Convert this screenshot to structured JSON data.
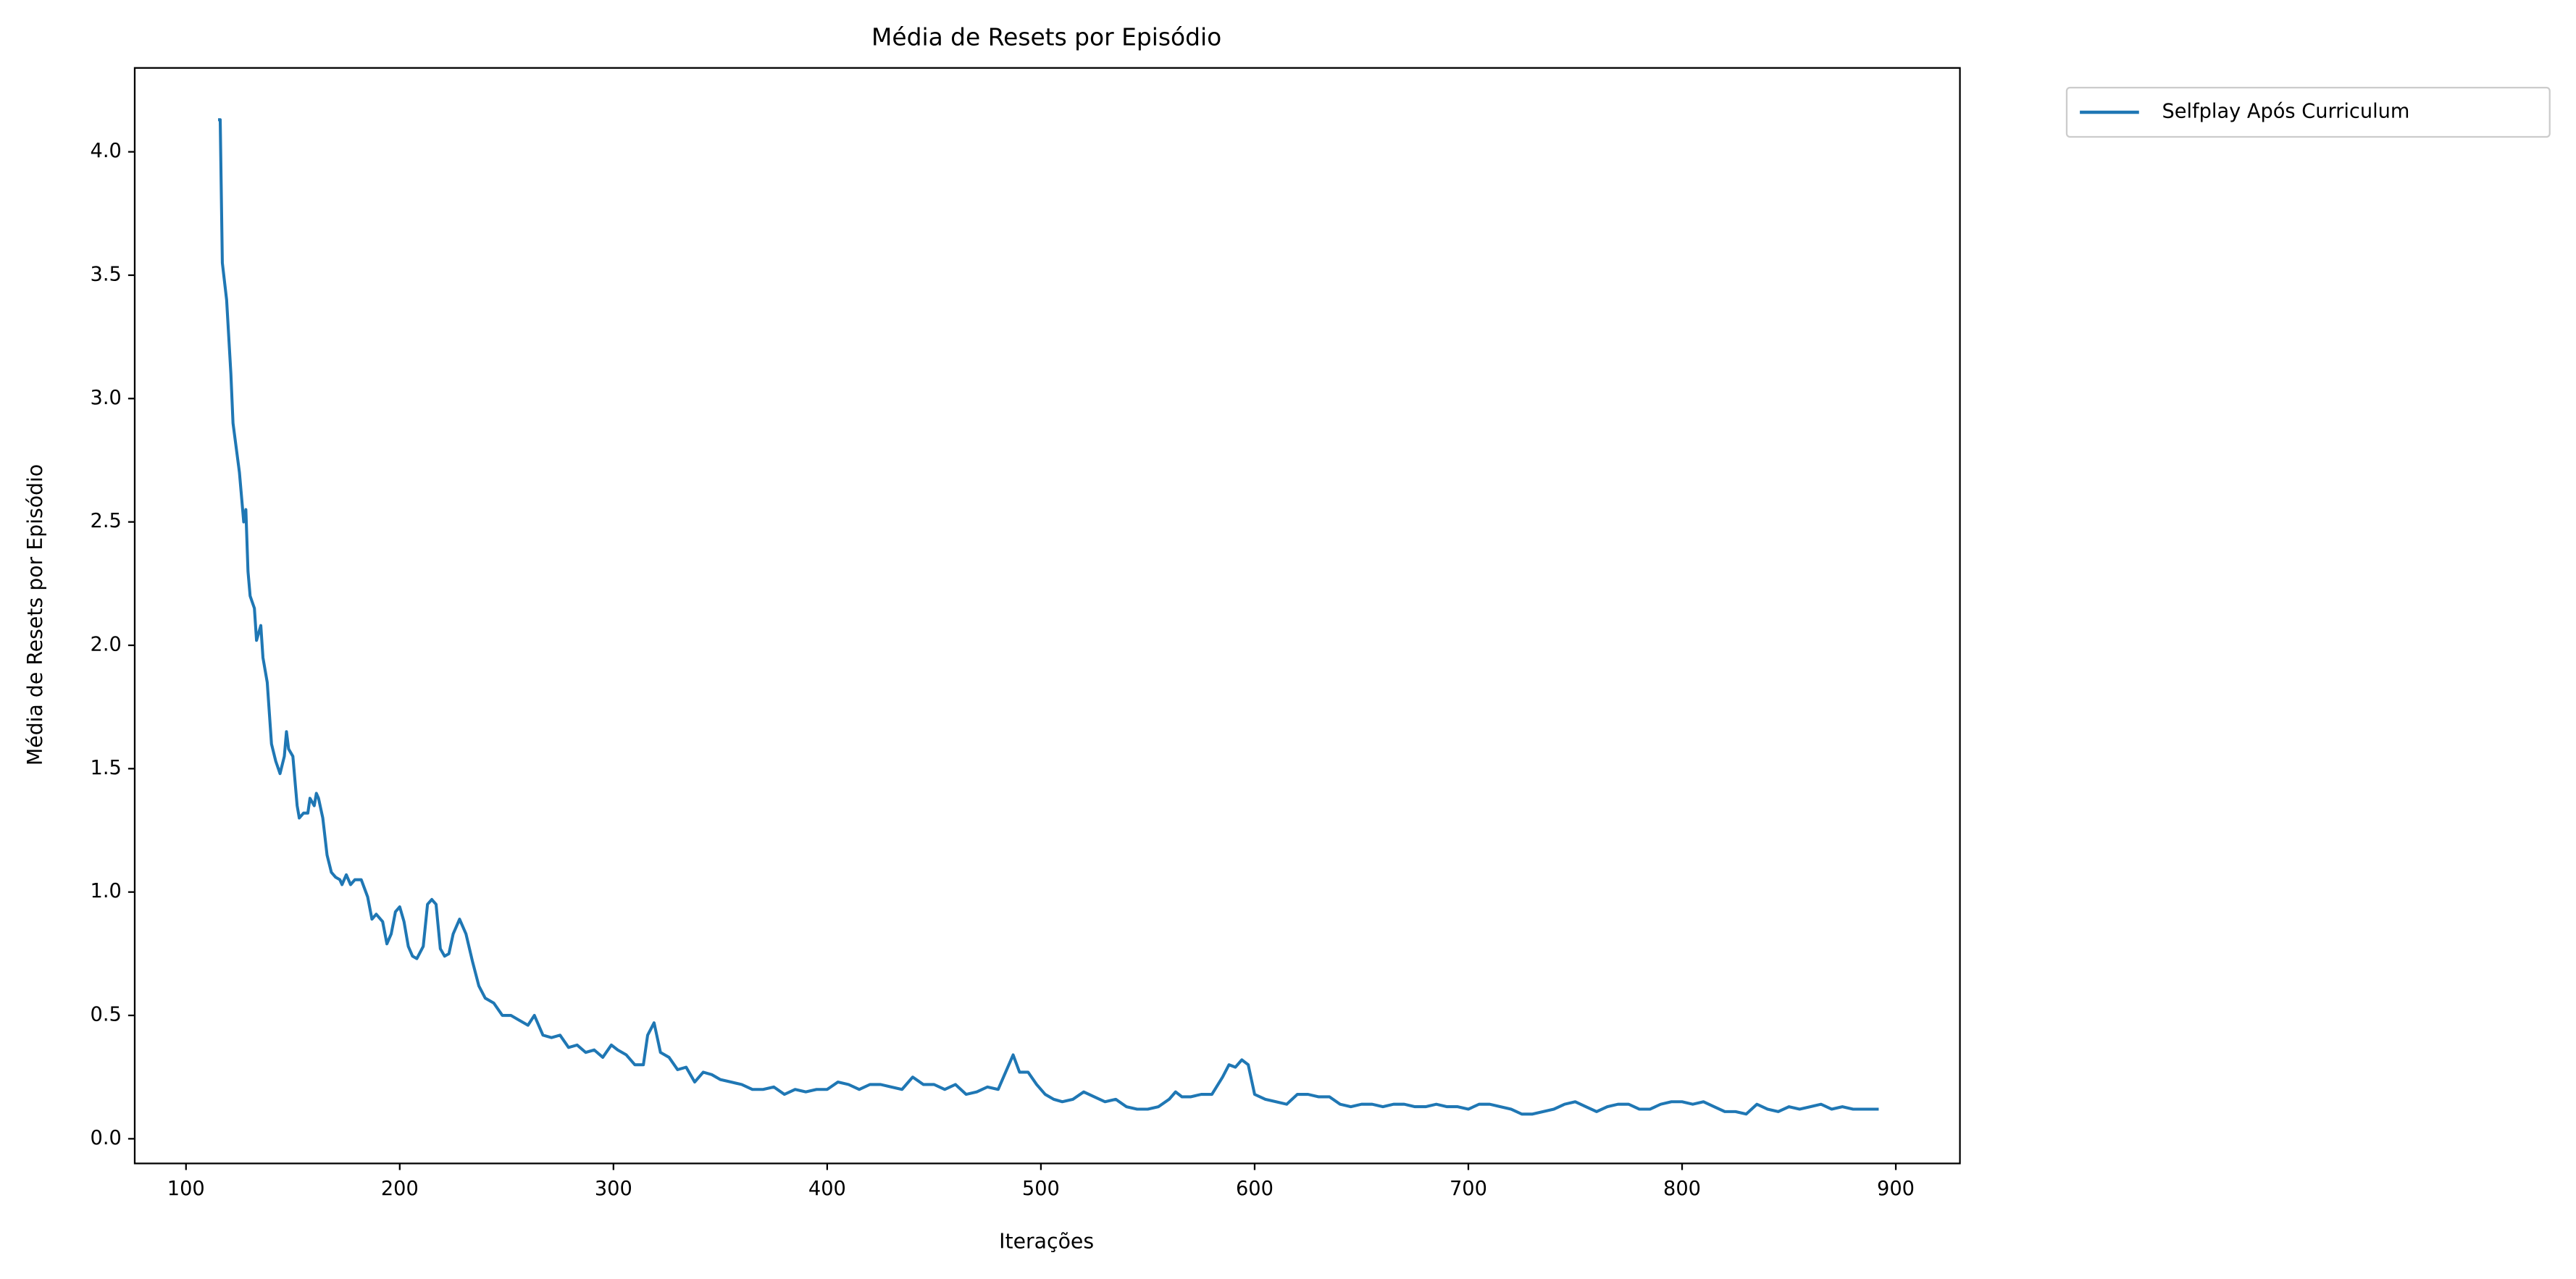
{
  "chart_data": {
    "type": "line",
    "title": "Média de Resets por Episódio",
    "x_label": "Iterações",
    "y_label": "Média de Resets por Episódio",
    "x": [
      115,
      116,
      117,
      119,
      121,
      122,
      125,
      127,
      128,
      129,
      130,
      132,
      133,
      135,
      136,
      138,
      140,
      142,
      144,
      146,
      147,
      148,
      150,
      152,
      153,
      155,
      157,
      158,
      160,
      161,
      162,
      164,
      166,
      168,
      170,
      172,
      173,
      175,
      177,
      179,
      182,
      185,
      187,
      189,
      192,
      194,
      196,
      198,
      200,
      202,
      204,
      206,
      208,
      211,
      213,
      215,
      217,
      219,
      221,
      223,
      225,
      228,
      231,
      234,
      237,
      240,
      244,
      248,
      252,
      256,
      260,
      263,
      267,
      271,
      275,
      279,
      283,
      287,
      291,
      295,
      299,
      302,
      306,
      310,
      314,
      316,
      319,
      322,
      326,
      330,
      334,
      338,
      342,
      346,
      350,
      355,
      360,
      365,
      370,
      375,
      380,
      385,
      390,
      395,
      400,
      405,
      410,
      415,
      420,
      425,
      430,
      435,
      440,
      445,
      450,
      455,
      460,
      465,
      470,
      475,
      480,
      484,
      487,
      490,
      494,
      498,
      502,
      506,
      510,
      515,
      520,
      525,
      530,
      535,
      540,
      545,
      550,
      555,
      560,
      563,
      566,
      570,
      575,
      580,
      585,
      588,
      591,
      594,
      597,
      600,
      605,
      610,
      615,
      620,
      625,
      630,
      635,
      640,
      645,
      650,
      655,
      660,
      665,
      670,
      675,
      680,
      685,
      690,
      695,
      700,
      705,
      710,
      715,
      720,
      725,
      730,
      735,
      740,
      745,
      750,
      755,
      760,
      765,
      770,
      775,
      780,
      785,
      790,
      795,
      800,
      805,
      810,
      815,
      820,
      825,
      830,
      835,
      840,
      845,
      850,
      855,
      860,
      865,
      870,
      875,
      880,
      885,
      890,
      892
    ],
    "series": [
      {
        "name": "Selfplay Após Curriculum",
        "color": "#1f77b4",
        "values": [
          4.13,
          4.13,
          3.55,
          3.4,
          3.1,
          2.9,
          2.7,
          2.5,
          2.55,
          2.3,
          2.2,
          2.15,
          2.02,
          2.08,
          1.95,
          1.85,
          1.6,
          1.53,
          1.48,
          1.55,
          1.65,
          1.58,
          1.55,
          1.35,
          1.3,
          1.32,
          1.32,
          1.38,
          1.35,
          1.4,
          1.38,
          1.3,
          1.15,
          1.08,
          1.06,
          1.05,
          1.03,
          1.07,
          1.03,
          1.05,
          1.05,
          0.98,
          0.89,
          0.91,
          0.88,
          0.79,
          0.83,
          0.92,
          0.94,
          0.88,
          0.78,
          0.74,
          0.73,
          0.78,
          0.95,
          0.97,
          0.95,
          0.77,
          0.74,
          0.75,
          0.83,
          0.89,
          0.83,
          0.72,
          0.62,
          0.57,
          0.55,
          0.5,
          0.5,
          0.48,
          0.46,
          0.5,
          0.42,
          0.41,
          0.42,
          0.37,
          0.38,
          0.35,
          0.36,
          0.33,
          0.38,
          0.36,
          0.34,
          0.3,
          0.3,
          0.42,
          0.47,
          0.35,
          0.33,
          0.28,
          0.29,
          0.23,
          0.27,
          0.26,
          0.24,
          0.23,
          0.22,
          0.2,
          0.2,
          0.21,
          0.18,
          0.2,
          0.19,
          0.2,
          0.2,
          0.23,
          0.22,
          0.2,
          0.22,
          0.22,
          0.21,
          0.2,
          0.25,
          0.22,
          0.22,
          0.2,
          0.22,
          0.18,
          0.19,
          0.21,
          0.2,
          0.28,
          0.34,
          0.27,
          0.27,
          0.22,
          0.18,
          0.16,
          0.15,
          0.16,
          0.19,
          0.17,
          0.15,
          0.16,
          0.13,
          0.12,
          0.12,
          0.13,
          0.16,
          0.19,
          0.17,
          0.17,
          0.18,
          0.18,
          0.25,
          0.3,
          0.29,
          0.32,
          0.3,
          0.18,
          0.16,
          0.15,
          0.14,
          0.18,
          0.18,
          0.17,
          0.17,
          0.14,
          0.13,
          0.14,
          0.14,
          0.13,
          0.14,
          0.14,
          0.13,
          0.13,
          0.14,
          0.13,
          0.13,
          0.12,
          0.14,
          0.14,
          0.13,
          0.12,
          0.1,
          0.1,
          0.11,
          0.12,
          0.14,
          0.15,
          0.13,
          0.11,
          0.13,
          0.14,
          0.14,
          0.12,
          0.12,
          0.14,
          0.15,
          0.15,
          0.14,
          0.15,
          0.13,
          0.11,
          0.11,
          0.1,
          0.14,
          0.12,
          0.11,
          0.13,
          0.12,
          0.13,
          0.14,
          0.12,
          0.13,
          0.12,
          0.12,
          0.12,
          0.12
        ]
      }
    ],
    "xlim": [
      76,
      930
    ],
    "xticks": [
      100,
      200,
      300,
      400,
      500,
      600,
      700,
      800,
      900
    ],
    "ylim": [
      -0.1,
      4.34
    ],
    "yticks": [
      {
        "value": 0,
        "label": "0.0"
      },
      {
        "value": 0.5,
        "label": "0.5"
      },
      {
        "value": 1,
        "label": "1.0"
      },
      {
        "value": 1.5,
        "label": "1.5"
      },
      {
        "value": 2,
        "label": "2.0"
      },
      {
        "value": 2.5,
        "label": "2.5"
      },
      {
        "value": 3,
        "label": "3.0"
      },
      {
        "value": 3.5,
        "label": "3.5"
      },
      {
        "value": 4,
        "label": "4.0"
      }
    ],
    "grid": false,
    "legend": "outside-upper-right"
  }
}
